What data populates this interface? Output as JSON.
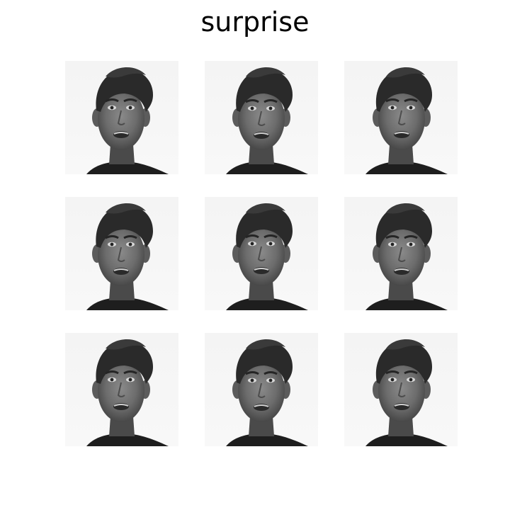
{
  "figure": {
    "title": "surprise"
  },
  "images": [
    {
      "name": "face-r1c1"
    },
    {
      "name": "face-r1c2"
    },
    {
      "name": "face-r1c3"
    },
    {
      "name": "face-r2c1"
    },
    {
      "name": "face-r2c2"
    },
    {
      "name": "face-r2c3"
    },
    {
      "name": "face-r3c1"
    },
    {
      "name": "face-r3c2"
    },
    {
      "name": "face-r3c3"
    }
  ]
}
